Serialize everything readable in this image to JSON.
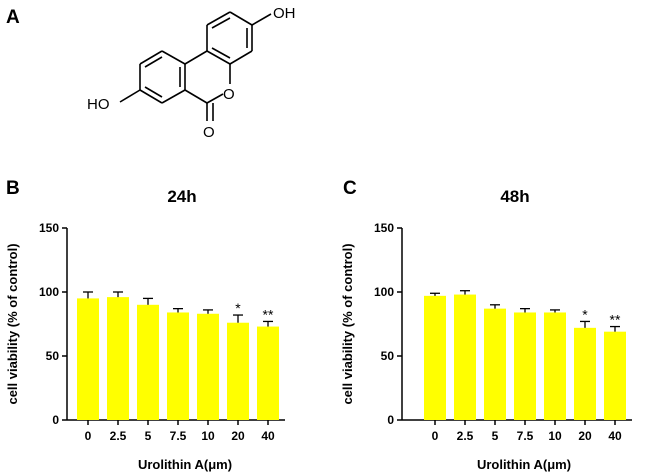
{
  "panels": {
    "A": {
      "letter": "A",
      "structure_labels": {
        "top_oh": "OH",
        "left_ho": "HO",
        "ring_o": "O",
        "carbonyl_o": "O"
      }
    }
  },
  "chart_data": [
    {
      "panel": "B",
      "type": "bar",
      "title": "24h",
      "xlabel": "Urolithin A(μm)",
      "ylabel": "cell viability (% of control)",
      "ylim": [
        0,
        150
      ],
      "yticks": [
        0,
        50,
        100,
        150
      ],
      "categories": [
        "0",
        "2.5",
        "5",
        "7.5",
        "10",
        "20",
        "40"
      ],
      "values": [
        95,
        96,
        90,
        84,
        83,
        76,
        73
      ],
      "errors": [
        5,
        4,
        5,
        3,
        3,
        6,
        4
      ],
      "significance": [
        "",
        "",
        "",
        "",
        "",
        "*",
        "**"
      ],
      "bar_color": "#ffff00",
      "grid": false
    },
    {
      "panel": "C",
      "type": "bar",
      "title": "48h",
      "xlabel": "Urolithin A(μm)",
      "ylabel": "cell viability (% of control)",
      "ylim": [
        0,
        150
      ],
      "yticks": [
        0,
        50,
        100,
        150
      ],
      "categories": [
        "0",
        "2.5",
        "5",
        "7.5",
        "10",
        "20",
        "40"
      ],
      "values": [
        97,
        98,
        87,
        84,
        84,
        72,
        69
      ],
      "errors": [
        2,
        3,
        3,
        3,
        2,
        5,
        4
      ],
      "significance": [
        "",
        "",
        "",
        "",
        "",
        "*",
        "**"
      ],
      "bar_color": "#ffff00",
      "grid": false
    }
  ]
}
